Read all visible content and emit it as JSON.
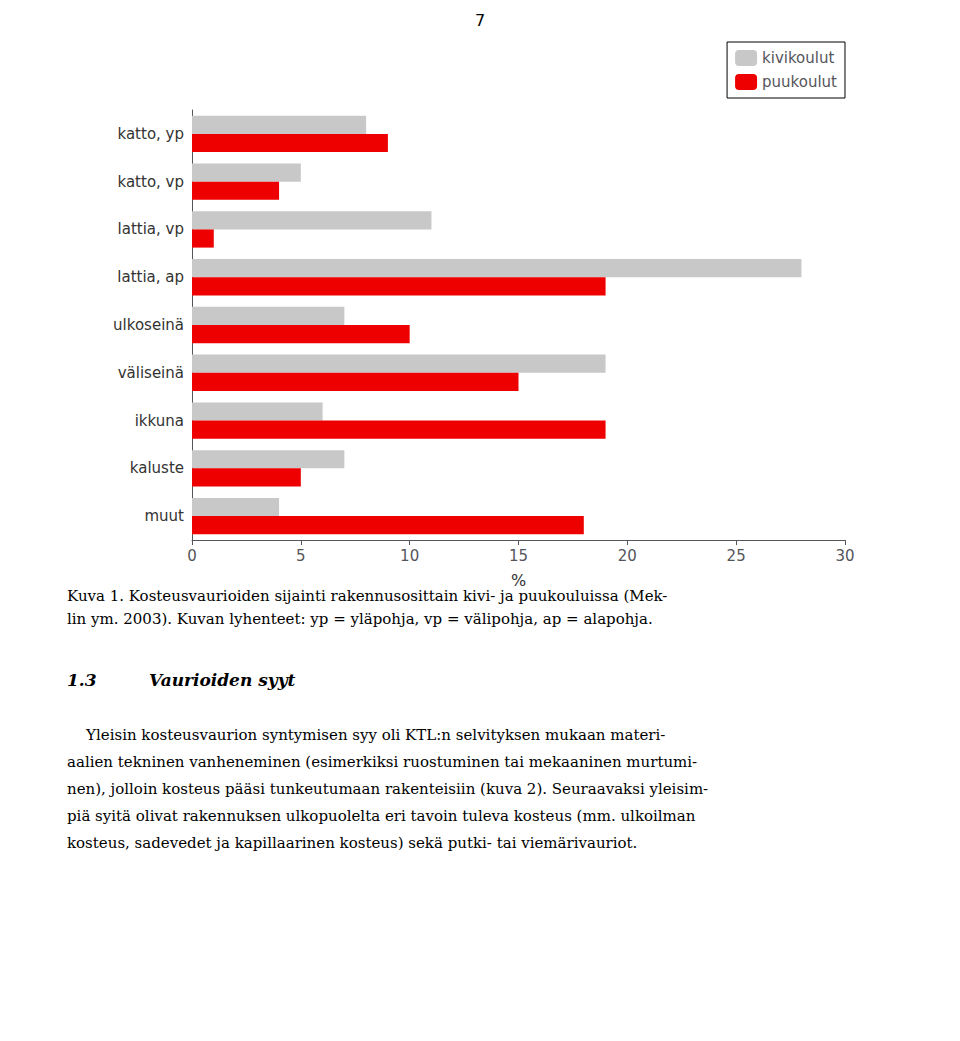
{
  "chart_data": {
    "type": "bar",
    "orientation": "horizontal",
    "categories": [
      "katto, yp",
      "katto, vp",
      "lattia, vp",
      "lattia, ap",
      "ulkoseinä",
      "väliseinä",
      "ikkuna",
      "kaluste",
      "muut"
    ],
    "series": [
      {
        "name": "kivikoulut",
        "color": "#c8c8c8",
        "values": [
          8,
          5,
          11,
          28,
          7,
          19,
          6,
          7,
          4
        ]
      },
      {
        "name": "puukoulut",
        "color": "#ee0000",
        "values": [
          9,
          4,
          1,
          19,
          10,
          15,
          19,
          5,
          18
        ]
      }
    ],
    "xlabel": "%",
    "xlim": [
      0,
      30
    ],
    "xticks": [
      0,
      5,
      10,
      15,
      20,
      25,
      30
    ],
    "grid": false,
    "legend": "upper right",
    "annotations": [
      "7",
      "Kuva 1. Kosteusvaurioiden sijainti rakennusosittain kivi- ja puukouluissa (Mek-",
      "lin ym. 2003). Kuvan lyhenteet: yp = yläpohja, vp = välipohja, ap = alapohja.",
      "1.3",
      "Vaurioiden syyt",
      "    Yleisin kosteusvaurion syntymisen syy oli KTL:n selvityksen mukaan materi-",
      "aalien tekninen vanheneminen (esimerkiksi ruostuminen tai mekaaninen murtumi-",
      "nen), jolloin kosteus pääsi tunkeutumaan rakenteisiin (kuva 2). Seuraavaksi yleisim-",
      "piä syitä olivat rakennuksen ulkopuolelta eri tavoin tuleva kosteus (mm. ulkoilman",
      "kosteus, sadevedet ja kapillaarinen kosteus) sekä putki- tai viemärivauriot."
    ]
  }
}
